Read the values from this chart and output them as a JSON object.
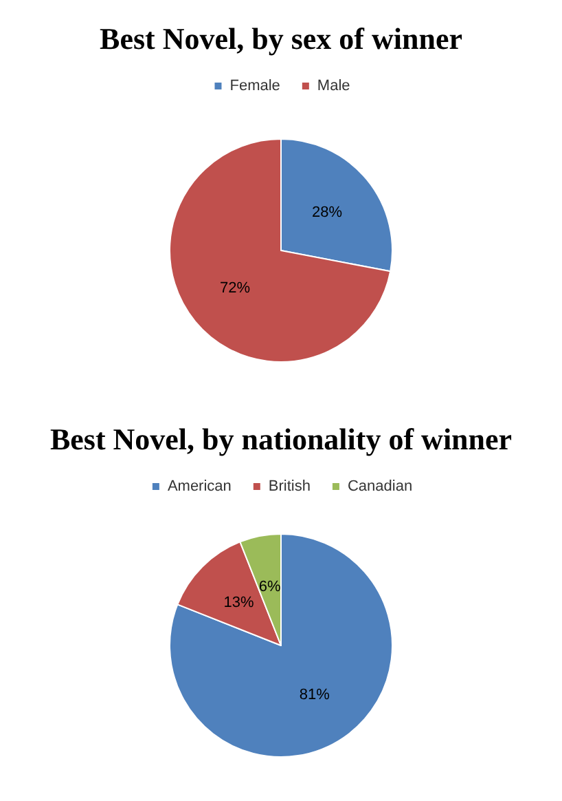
{
  "chart_data": [
    {
      "type": "pie",
      "title": "Best Novel, by sex of winner",
      "categories": [
        "Female",
        "Male"
      ],
      "values": [
        28,
        72
      ],
      "colors": [
        "#4f81bd",
        "#c0504d"
      ],
      "value_labels": [
        "28%",
        "72%"
      ],
      "legend": "top"
    },
    {
      "type": "pie",
      "title": "Best Novel, by nationality of winner",
      "categories": [
        "American",
        "British",
        "Canadian"
      ],
      "values": [
        81,
        13,
        6
      ],
      "colors": [
        "#4f81bd",
        "#c0504d",
        "#9bbb59"
      ],
      "value_labels": [
        "81%",
        "13%",
        "6%"
      ],
      "legend": "top"
    }
  ]
}
